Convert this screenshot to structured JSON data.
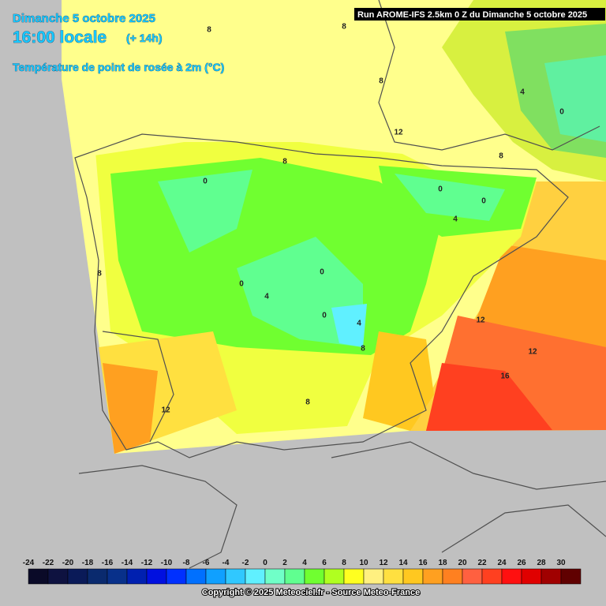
{
  "header": {
    "date": "Dimanche 5 octobre 2025",
    "time": "16:00 locale",
    "lead": "(+ 14h)",
    "parameter": "Température de point de rosée à 2m (°C)",
    "run": "Run AROME-IFS 2.5km 0 Z du Dimanche 5 octobre 2025"
  },
  "map": {
    "contour_labels": [
      "8",
      "8",
      "8",
      "4",
      "0",
      "12",
      "8",
      "8",
      "0",
      "0",
      "0",
      "4",
      "8",
      "0",
      "0",
      "4",
      "0",
      "4",
      "12",
      "8",
      "12",
      "16",
      "12",
      "8"
    ]
  },
  "legend": {
    "labels": [
      "-24",
      "-22",
      "-20",
      "-18",
      "-16",
      "-14",
      "-12",
      "-10",
      "-8",
      "-6",
      "-4",
      "-2",
      "0",
      "2",
      "4",
      "6",
      "8",
      "10",
      "12",
      "14",
      "16",
      "18",
      "20",
      "22",
      "24",
      "26",
      "28",
      "30"
    ],
    "colors": [
      "#0a0a28",
      "#0e1240",
      "#0a1a58",
      "#0a2a6e",
      "#08308a",
      "#0020b0",
      "#0010e0",
      "#0030ff",
      "#0070ff",
      "#10a0ff",
      "#30c8ff",
      "#60f0ff",
      "#70ffc8",
      "#60ff90",
      "#70ff30",
      "#b0ff20",
      "#ffff20",
      "#fff080",
      "#ffe040",
      "#ffc820",
      "#ffa020",
      "#ff8020",
      "#ff6040",
      "#ff4020",
      "#ff1010",
      "#e00000",
      "#a00000",
      "#600000"
    ]
  },
  "footer": {
    "copyright": "Copyright © 2025 Meteociel.fr - Source Meteo-France"
  }
}
